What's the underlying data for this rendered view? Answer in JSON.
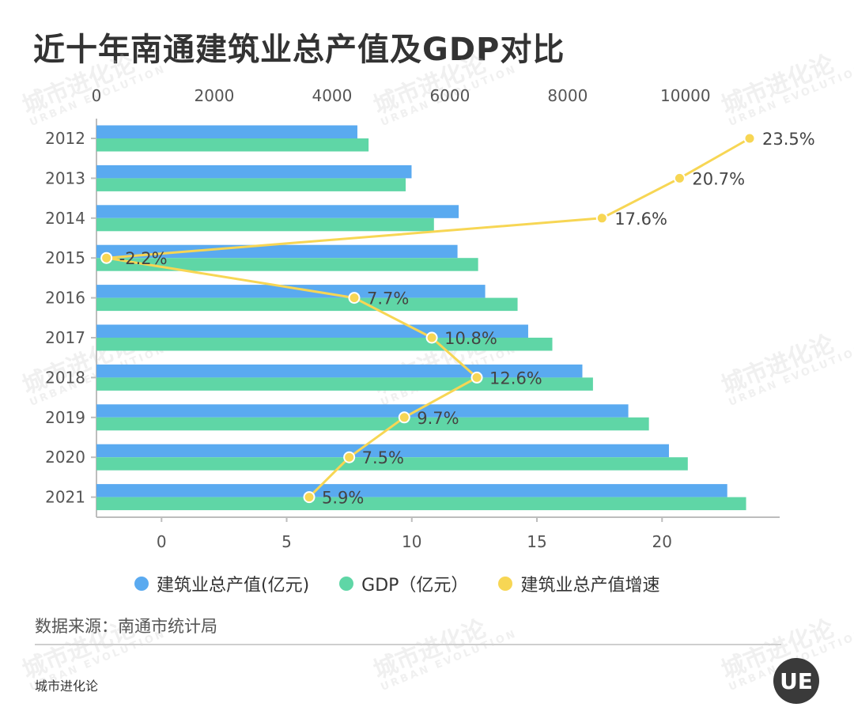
{
  "title": "近十年南通建筑业总产值及GDP对比",
  "source": "数据来源：南通市统计局",
  "brand": "城市进化论",
  "logo_text": "UE",
  "watermark": {
    "cn": "城市进化论",
    "en": "URBAN EVOLUTION"
  },
  "legend": [
    {
      "label": "建筑业总产值(亿元)",
      "color": "#5aaaf0"
    },
    {
      "label": "GDP（亿元）",
      "color": "#5fd6a6"
    },
    {
      "label": "建筑业总产值增速",
      "color": "#f7d654"
    }
  ],
  "chart_data": {
    "type": "bar",
    "orientation": "horizontal",
    "categories": [
      "2012",
      "2013",
      "2014",
      "2015",
      "2016",
      "2017",
      "2018",
      "2019",
      "2020",
      "2021"
    ],
    "series": [
      {
        "name": "建筑业总产值(亿元)",
        "type": "bar",
        "axis": "top",
        "color": "#5aaaf0",
        "values": [
          4430,
          5350,
          6150,
          6130,
          6600,
          7330,
          8250,
          9030,
          9720,
          10710
        ]
      },
      {
        "name": "GDP（亿元）",
        "type": "bar",
        "axis": "top",
        "color": "#5fd6a6",
        "values": [
          4620,
          5250,
          5730,
          6480,
          7150,
          7740,
          8430,
          9380,
          10040,
          11030
        ]
      },
      {
        "name": "建筑业总产值增速",
        "type": "line",
        "axis": "bottom",
        "color": "#f7d654",
        "values": [
          23.5,
          20.7,
          17.6,
          -2.2,
          7.7,
          10.8,
          12.6,
          9.7,
          7.5,
          5.9
        ],
        "labels": [
          "23.5%",
          "20.7%",
          "17.6%",
          "-2.2%",
          "7.7%",
          "10.8%",
          "12.6%",
          "9.7%",
          "7.5%",
          "5.9%"
        ]
      }
    ],
    "top_axis": {
      "range": [
        0,
        11600
      ],
      "ticks": [
        0,
        2000,
        4000,
        6000,
        8000,
        10000
      ]
    },
    "bottom_axis": {
      "range": [
        -2.6,
        24.7
      ],
      "ticks": [
        0,
        5,
        10,
        15,
        20
      ]
    },
    "grid": false,
    "legend_position": "bottom"
  }
}
